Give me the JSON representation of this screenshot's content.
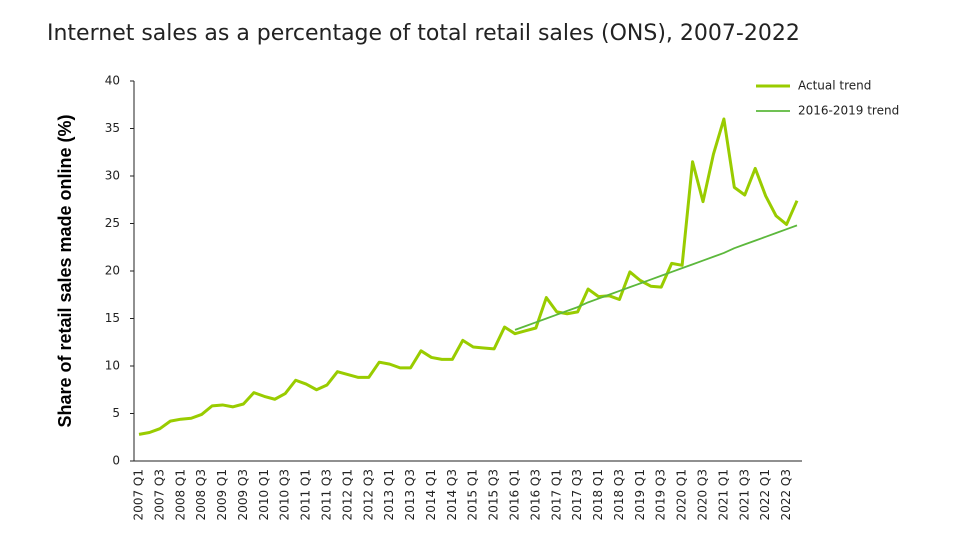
{
  "chart_data": {
    "type": "line",
    "title": "Internet sales as a percentage of total retail sales (ONS), 2007-2022",
    "y_label": "Share of retail sales made online (%)",
    "categories": [
      "2007 Q1",
      null,
      "2007 Q3",
      null,
      "2008 Q1",
      null,
      "2008 Q3",
      null,
      "2009 Q1",
      null,
      "2009 Q3",
      null,
      "2010 Q1",
      null,
      "2010 Q3",
      null,
      "2011 Q1",
      null,
      "2011 Q3",
      null,
      "2012 Q1",
      null,
      "2012 Q3",
      null,
      "2013 Q1",
      null,
      "2013 Q3",
      null,
      "2014 Q1",
      null,
      "2014 Q3",
      null,
      "2015 Q1",
      null,
      "2015 Q3",
      null,
      "2016 Q1",
      null,
      "2016 Q3",
      null,
      "2017 Q1",
      null,
      "2017 Q3",
      null,
      "2018 Q1",
      null,
      "2018 Q3",
      null,
      "2019 Q1",
      null,
      "2019 Q3",
      null,
      "2020 Q1",
      null,
      "2020 Q3",
      null,
      "2021 Q1",
      null,
      "2021 Q3",
      null,
      "2022 Q1",
      null,
      "2022 Q3",
      null
    ],
    "series": [
      {
        "name": "Actual trend",
        "color": "#99cc00",
        "values": [
          2.8,
          3.0,
          3.4,
          4.2,
          4.4,
          4.5,
          4.9,
          5.8,
          5.9,
          5.7,
          6.0,
          7.2,
          6.8,
          6.5,
          7.1,
          8.5,
          8.1,
          7.5,
          8.0,
          9.4,
          9.1,
          8.8,
          8.8,
          10.4,
          10.2,
          9.8,
          9.8,
          11.6,
          10.9,
          10.7,
          10.7,
          12.7,
          12.0,
          11.9,
          11.8,
          14.1,
          13.4,
          13.7,
          14.0,
          17.2,
          15.7,
          15.5,
          15.7,
          18.1,
          17.3,
          17.4,
          17.0,
          19.9,
          19.0,
          18.4,
          18.3,
          20.8,
          20.6,
          31.5,
          27.3,
          32.3,
          36.0,
          28.8,
          28.0,
          30.8,
          27.9,
          25.8,
          24.9,
          27.4
        ]
      },
      {
        "name": "2016-2019 trend",
        "color": "#5cb83c",
        "values": [
          null,
          null,
          null,
          null,
          null,
          null,
          null,
          null,
          null,
          null,
          null,
          null,
          null,
          null,
          null,
          null,
          null,
          null,
          null,
          null,
          null,
          null,
          null,
          null,
          null,
          null,
          null,
          null,
          null,
          null,
          null,
          null,
          null,
          null,
          null,
          null,
          13.8,
          14.2,
          14.6,
          15.0,
          15.4,
          15.8,
          16.2,
          16.7,
          17.1,
          17.5,
          17.9,
          18.3,
          18.7,
          19.1,
          19.5,
          19.9,
          20.3,
          20.7,
          21.1,
          21.5,
          21.9,
          22.4,
          22.8,
          23.2,
          23.6,
          24.0,
          24.4,
          24.8
        ]
      }
    ],
    "ylim": [
      0,
      40
    ],
    "yticks": [
      0,
      5,
      10,
      15,
      20,
      25,
      30,
      35,
      40
    ],
    "grid": false,
    "legend": "top-right"
  }
}
